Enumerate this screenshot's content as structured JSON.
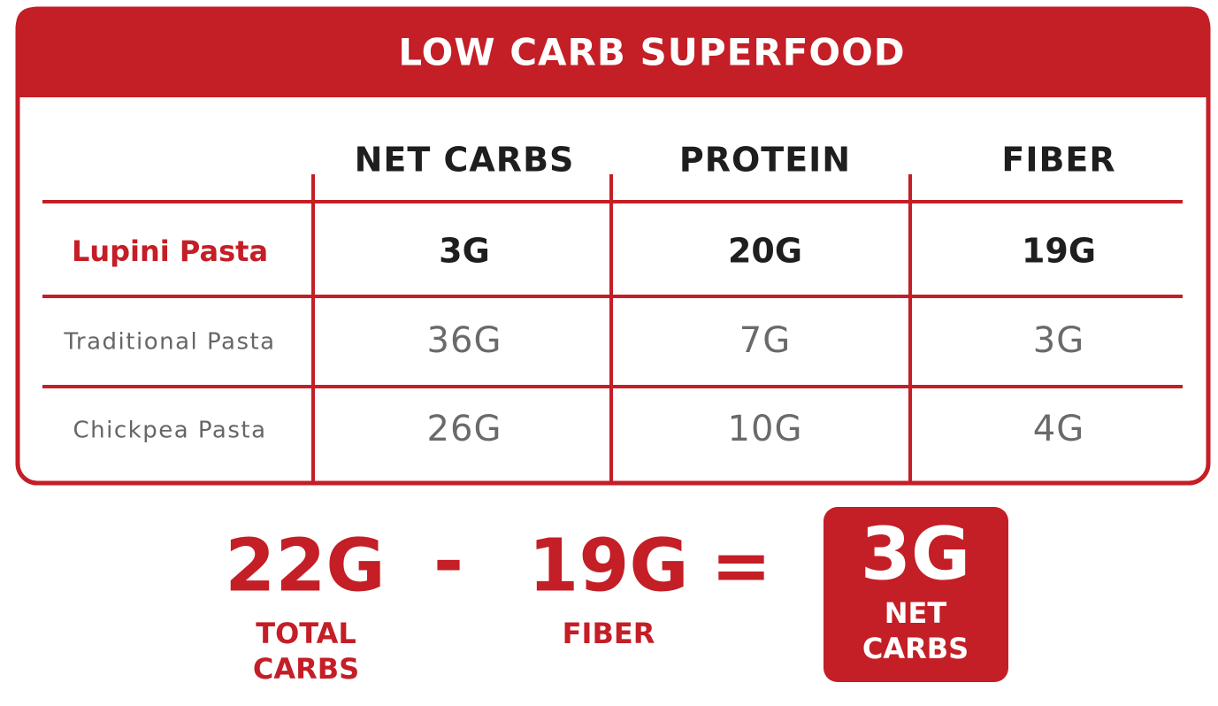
{
  "header": {
    "title": "LOW CARB SUPERFOOD"
  },
  "table": {
    "columns": [
      "NET CARBS",
      "PROTEIN",
      "FIBER"
    ],
    "rows": [
      {
        "label": "Lupini Pasta",
        "values": [
          "3G",
          "20G",
          "19G"
        ]
      },
      {
        "label": "Traditional Pasta",
        "values": [
          "36G",
          "7G",
          "3G"
        ]
      },
      {
        "label": "Chickpea Pasta",
        "values": [
          "26G",
          "10G",
          "4G"
        ]
      }
    ]
  },
  "equation": {
    "total": "22G",
    "minus": "-",
    "fiber": "19G",
    "equals": "=",
    "result": "3G",
    "total_label": [
      "TOTAL",
      "CARBS"
    ],
    "fiber_label": [
      "FIBER"
    ],
    "result_label": [
      "NET",
      "CARBS"
    ]
  }
}
